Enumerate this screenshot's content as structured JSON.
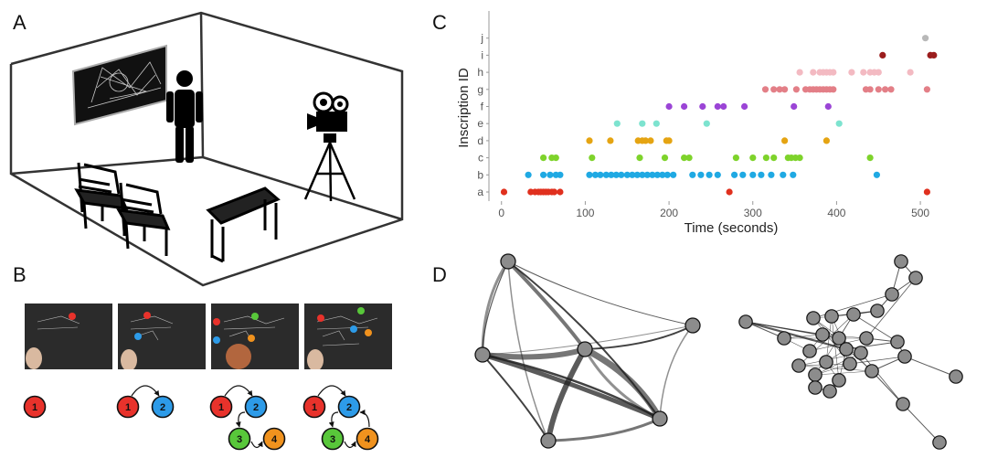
{
  "panels": {
    "a": "A",
    "b": "B",
    "c": "C",
    "d": "D"
  },
  "chart_data": {
    "type": "scatter",
    "xlabel": "Time (seconds)",
    "ylabel": "Inscription ID",
    "xlim": [
      -15,
      525
    ],
    "xticks": [
      0,
      100,
      200,
      300,
      400,
      500
    ],
    "categories": [
      "a",
      "b",
      "c",
      "d",
      "e",
      "f",
      "g",
      "h",
      "i",
      "j"
    ],
    "grid": false,
    "series": [
      {
        "id": "a",
        "color": "#e0301e",
        "x": [
          3,
          35,
          40,
          44,
          47,
          50,
          53,
          56,
          60,
          63,
          70,
          272,
          508
        ]
      },
      {
        "id": "b",
        "color": "#1fa9e3",
        "x": [
          32,
          50,
          58,
          65,
          70,
          105,
          112,
          118,
          125,
          131,
          137,
          143,
          150,
          156,
          162,
          168,
          174,
          180,
          186,
          192,
          198,
          205,
          228,
          238,
          248,
          258,
          278,
          288,
          300,
          310,
          322,
          336,
          348,
          448
        ]
      },
      {
        "id": "c",
        "color": "#7ed32b",
        "x": [
          50,
          60,
          65,
          108,
          165,
          195,
          218,
          224,
          280,
          300,
          316,
          325,
          342,
          346,
          351,
          356,
          440
        ]
      },
      {
        "id": "d",
        "color": "#e5a412",
        "x": [
          105,
          130,
          163,
          168,
          172,
          178,
          197,
          200,
          338,
          388
        ]
      },
      {
        "id": "e",
        "color": "#7de3cf",
        "x": [
          138,
          168,
          185,
          245,
          403
        ]
      },
      {
        "id": "f",
        "color": "#9b45d6",
        "x": [
          200,
          218,
          240,
          258,
          265,
          290,
          349,
          390
        ]
      },
      {
        "id": "g",
        "color": "#e37f87",
        "x": [
          315,
          325,
          332,
          338,
          352,
          363,
          368,
          372,
          376,
          380,
          384,
          388,
          392,
          396,
          435,
          440,
          450,
          458,
          465,
          508
        ]
      },
      {
        "id": "h",
        "color": "#f3bac2",
        "x": [
          356,
          372,
          380,
          384,
          388,
          392,
          396,
          418,
          432,
          440,
          445,
          450,
          488
        ]
      },
      {
        "id": "i",
        "color": "#9b1d1d",
        "x": [
          455,
          512,
          516
        ]
      },
      {
        "id": "j",
        "color": "#b8b8b8",
        "x": [
          506
        ]
      }
    ]
  },
  "steps": [
    {
      "nodes": [
        {
          "id": "1",
          "color": "#e8322b"
        }
      ]
    },
    {
      "nodes": [
        {
          "id": "1",
          "color": "#e8322b"
        },
        {
          "id": "2",
          "color": "#2d9be8"
        }
      ]
    },
    {
      "nodes": [
        {
          "id": "1",
          "color": "#e8322b"
        },
        {
          "id": "2",
          "color": "#2d9be8"
        },
        {
          "id": "3",
          "color": "#58c73a"
        },
        {
          "id": "4",
          "color": "#f0921e"
        }
      ]
    },
    {
      "nodes": [
        {
          "id": "1",
          "color": "#e8322b"
        },
        {
          "id": "2",
          "color": "#2d9be8"
        },
        {
          "id": "3",
          "color": "#58c73a"
        },
        {
          "id": "4",
          "color": "#f0921e"
        }
      ]
    }
  ],
  "network_colors": {
    "node": "#8c8c8c",
    "edge": "#222222"
  }
}
